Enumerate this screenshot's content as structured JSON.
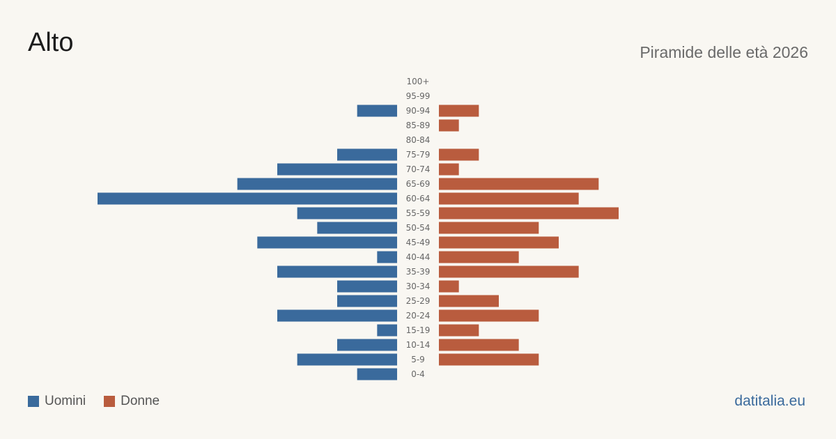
{
  "header": {
    "title": "Alto",
    "subtitle": "Piramide delle età 2026"
  },
  "legend": {
    "men_label": "Uomini",
    "women_label": "Donne"
  },
  "footer": {
    "source": "datitalia.eu"
  },
  "colors": {
    "men": "#3a6a9c",
    "women": "#b95c3e",
    "background": "#f9f7f2"
  },
  "chart_data": {
    "type": "bar",
    "orientation": "horizontal-pyramid",
    "categories": [
      "100+",
      "95-99",
      "90-94",
      "85-89",
      "80-84",
      "75-79",
      "70-74",
      "65-69",
      "60-64",
      "55-59",
      "50-54",
      "45-49",
      "40-44",
      "35-39",
      "30-34",
      "25-29",
      "20-24",
      "15-19",
      "10-14",
      "5-9",
      "0-4"
    ],
    "series": [
      {
        "name": "Uomini",
        "values": [
          0,
          0,
          2,
          0,
          0,
          3,
          6,
          8,
          15,
          5,
          4,
          7,
          1,
          6,
          3,
          3,
          6,
          1,
          3,
          5,
          2
        ]
      },
      {
        "name": "Donne",
        "values": [
          0,
          0,
          2,
          1,
          0,
          2,
          1,
          8,
          7,
          9,
          5,
          6,
          4,
          7,
          1,
          3,
          5,
          2,
          4,
          5,
          0
        ]
      }
    ],
    "xlim": [
      0,
      15
    ],
    "grid": false,
    "legend_position": "bottom-left"
  }
}
